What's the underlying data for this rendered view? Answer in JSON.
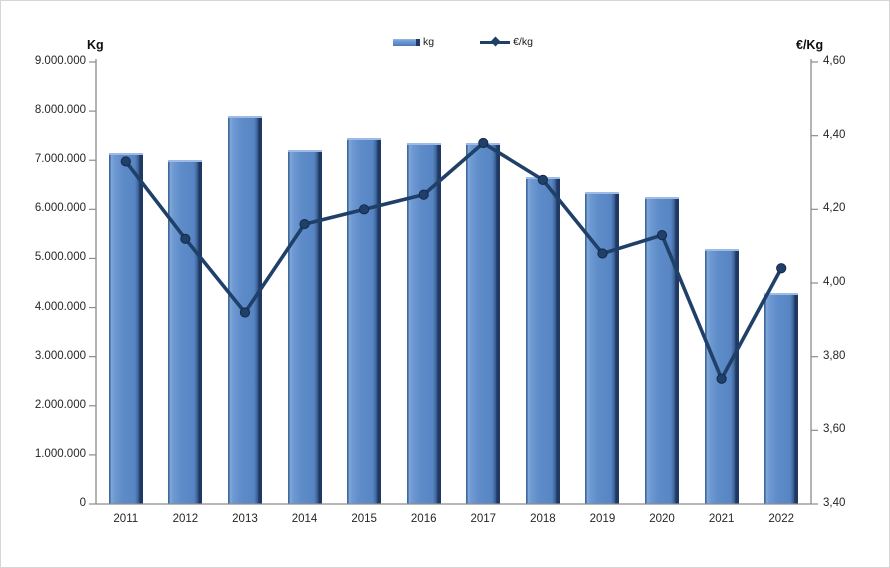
{
  "page": {
    "background": "#ffffff",
    "frame_border": "#d6d6d6"
  },
  "legend": {
    "items": [
      {
        "label": "kg",
        "swatch": "bar-swatch"
      },
      {
        "label": "€/kg",
        "swatch": "line-swatch"
      }
    ]
  },
  "chart_data": {
    "type": "combo-bar-line",
    "title": "",
    "grid": false,
    "legend_position": "top-center",
    "categories": [
      "2011",
      "2012",
      "2013",
      "2014",
      "2015",
      "2016",
      "2017",
      "2018",
      "2019",
      "2020",
      "2021",
      "2022"
    ],
    "series": [
      {
        "name": "kg",
        "type": "bar",
        "axis": "left",
        "color": "#5E8CC9",
        "values": [
          7150000,
          7000000,
          7900000,
          7200000,
          7450000,
          7350000,
          7350000,
          6650000,
          6350000,
          6250000,
          5200000,
          4300000
        ]
      },
      {
        "name": "€/kg",
        "type": "line",
        "axis": "right",
        "color": "#1F4068",
        "values": [
          4.33,
          4.12,
          3.92,
          4.16,
          4.2,
          4.24,
          4.38,
          4.28,
          4.08,
          4.13,
          3.74,
          4.04
        ]
      }
    ],
    "left_axis": {
      "title": "Kg",
      "min": 0,
      "max": 9000000,
      "step": 1000000,
      "tick_labels": [
        "9.000.000",
        "8.000.000",
        "7.000.000",
        "6.000.000",
        "5.000.000",
        "4.000.000",
        "3.000.000",
        "2.000.000",
        "1.000.000",
        "0"
      ]
    },
    "right_axis": {
      "title": "€/Kg",
      "min": 3.4,
      "max": 4.6,
      "step": 0.2,
      "tick_labels": [
        "4,60",
        "4,40",
        "4,20",
        "4,00",
        "3,80",
        "3,60",
        "3,40"
      ]
    },
    "x_axis": {
      "labels": [
        "2011",
        "2012",
        "2013",
        "2014",
        "2015",
        "2016",
        "2017",
        "2018",
        "2019",
        "2020",
        "2021",
        "2022"
      ]
    },
    "colors": {
      "bar_fill": "#5E8CC9",
      "bar_edge_dark": "#1F3864",
      "bar_highlight": "#9DBBE4",
      "line": "#1F4068",
      "axis_line": "#8C8C8C",
      "label_text": "#262626"
    }
  }
}
